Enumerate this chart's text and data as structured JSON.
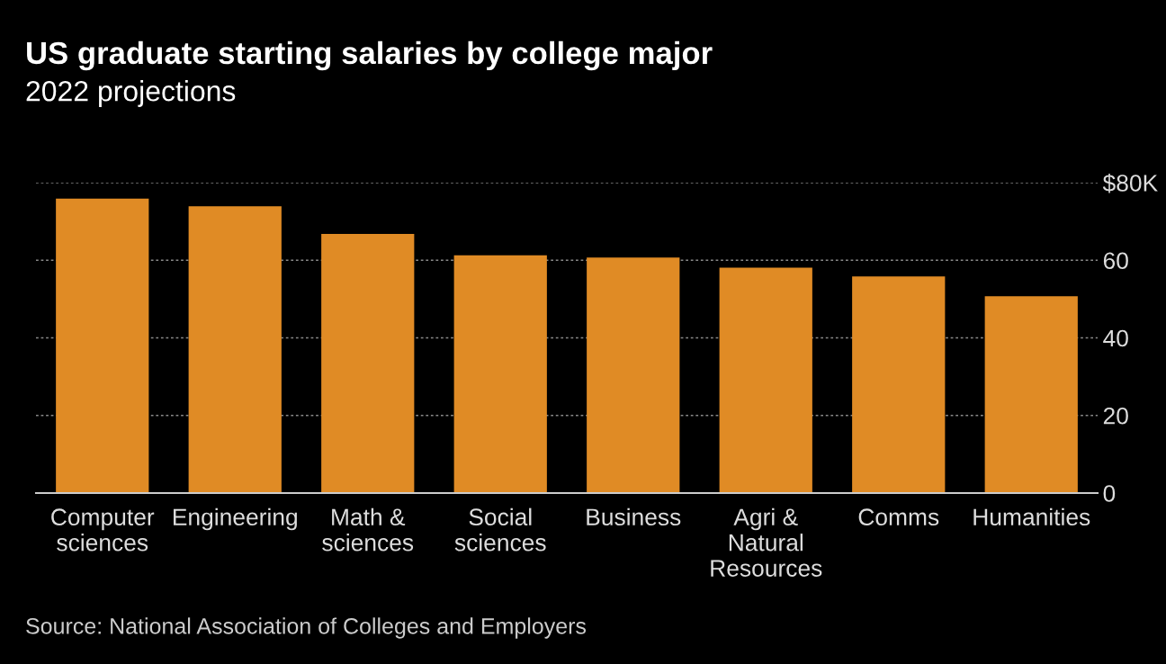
{
  "chart_data": {
    "type": "bar",
    "title": "US graduate starting salaries by college major",
    "subtitle": "2022 projections",
    "categories": [
      "Computer\nsciences",
      "Engineering",
      "Math &\nsciences",
      "Social\nsciences",
      "Business",
      "Agri &\nNatural\nResources",
      "Comms",
      "Humanities"
    ],
    "values": [
      75.9,
      73.9,
      66.8,
      61.3,
      60.7,
      58.1,
      55.8,
      50.7
    ],
    "color": "#e08b25",
    "ylim": [
      0,
      80
    ],
    "yticks": [
      0,
      20,
      40,
      60,
      {
        "value": 80,
        "label": "$80K"
      }
    ],
    "grid": "y",
    "annotations": [
      "Source: National Association of Colleges and Employers"
    ]
  }
}
